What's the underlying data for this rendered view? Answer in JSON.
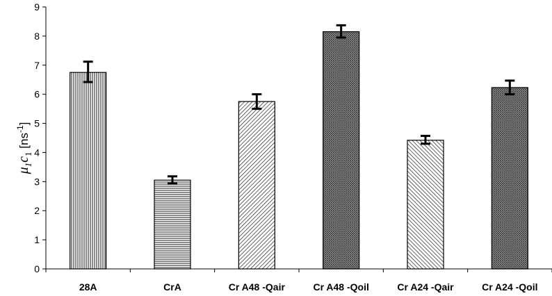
{
  "chart_data": {
    "type": "bar",
    "categories": [
      "28A",
      "CrA",
      "Cr A48 -Qair",
      "Cr A48 -Qoil",
      "Cr A24 -Qair",
      "Cr A24 -Qoil"
    ],
    "values": [
      6.75,
      3.05,
      5.75,
      8.15,
      4.42,
      6.23
    ],
    "error_low": [
      6.42,
      2.93,
      5.5,
      7.95,
      4.3,
      6.0
    ],
    "error_high": [
      7.12,
      3.18,
      6.0,
      8.37,
      4.57,
      6.47
    ],
    "ylim": [
      0,
      9
    ],
    "yticks": [
      0,
      1,
      2,
      3,
      4,
      5,
      6,
      7,
      8,
      9
    ],
    "ylabel": {
      "prefix": "μ",
      "sub": "1",
      "mid": "c",
      "sub2": "1",
      "suffix": " [ns",
      "sup": "-1",
      "end": "]"
    },
    "grid": false,
    "legend": "none",
    "bar_fill_patterns": [
      "vertical-lines",
      "horizontal-lines",
      "forward-diagonal",
      "dark-crosshatch",
      "back-diagonal",
      "dark-crosshatch"
    ],
    "colors": {
      "bar_outline": "#000000",
      "pattern_ink": "#000000",
      "background": "#ffffff"
    }
  }
}
